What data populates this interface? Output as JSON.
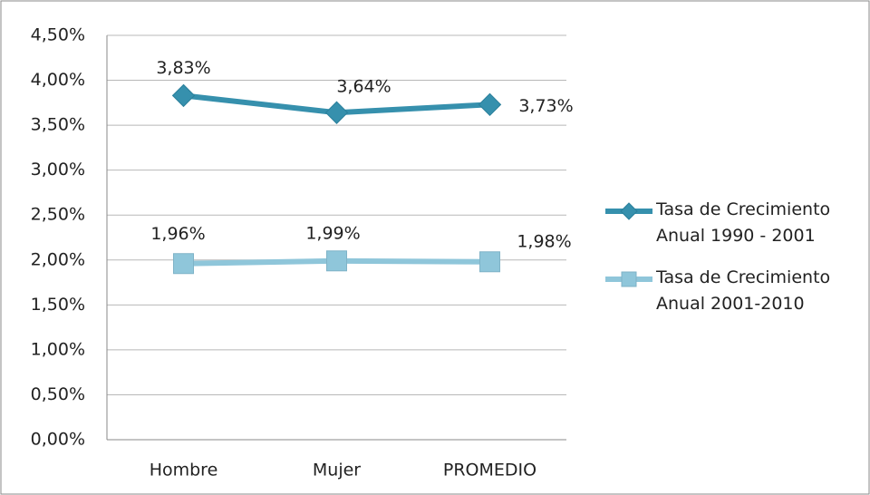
{
  "chart_data": {
    "type": "line",
    "categories": [
      "Hombre",
      "Mujer",
      "PROMEDIO"
    ],
    "series": [
      {
        "name": "Tasa de Crecimiento Anual 1990 - 2001",
        "color": "#3690ad",
        "marker": "diamond",
        "values": [
          3.83,
          3.64,
          3.73
        ],
        "value_labels": [
          "3,83%",
          "3,64%",
          "3,73%"
        ]
      },
      {
        "name": "Tasa de Crecimiento Anual 2001-2010",
        "color": "#8fc6da",
        "marker": "square",
        "values": [
          1.96,
          1.99,
          1.98
        ],
        "value_labels": [
          "1,96%",
          "1,99%",
          "1,98%"
        ]
      }
    ],
    "ylim": [
      0,
      4.5
    ],
    "yticks": [
      {
        "value": 0,
        "label": "0,00%"
      },
      {
        "value": 0.5,
        "label": "0,50%"
      },
      {
        "value": 1,
        "label": "1,00%"
      },
      {
        "value": 1.5,
        "label": "1,50%"
      },
      {
        "value": 2,
        "label": "2,00%"
      },
      {
        "value": 2.5,
        "label": "2,50%"
      },
      {
        "value": 3,
        "label": "3,00%"
      },
      {
        "value": 3.5,
        "label": "3,50%"
      },
      {
        "value": 4,
        "label": "4,00%"
      },
      {
        "value": 4.5,
        "label": "4,50%"
      }
    ],
    "grid": true,
    "legend": "right"
  }
}
